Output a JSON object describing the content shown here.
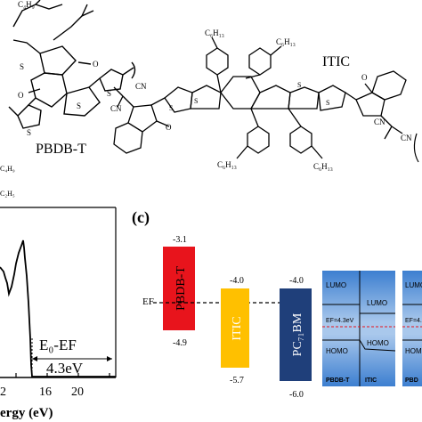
{
  "top": {
    "pbdbt_label": "PBDB-T",
    "itic_label": "ITIC",
    "c4h9": "C₄H₉",
    "c2h5": "C₂H₅",
    "c6h13": "C₆H₁₃",
    "cn": "CN",
    "o": "O",
    "s": "S"
  },
  "ups": {
    "annotation": "E₀-EF",
    "value": "4.3eV",
    "xlabel": "ergy (eV)",
    "ticks": [
      "16",
      "20"
    ],
    "partial_tick": "2"
  },
  "panel_c": {
    "label": "(c)",
    "ef_label": "EF",
    "bars": [
      {
        "name": "PBDB-T",
        "lumo": "-3.1",
        "homo": "-4.9",
        "color": "#e8141c"
      },
      {
        "name": "ITIC",
        "lumo": "-4.0",
        "homo": "-5.7",
        "color": "#ffc000"
      },
      {
        "name": "PC₇₁BM",
        "lumo": "-4.0",
        "homo": "-6.0",
        "color": "#1f3f7a"
      }
    ],
    "band1": {
      "lumo_left": "LUMO",
      "lumo_right": "LUMO",
      "ef": "EF=4.3eV",
      "homo_left": "HOMO",
      "homo_right": "HOMO",
      "bottom_left": "PBDB-T",
      "bottom_right": "ITIC"
    },
    "band2": {
      "lumo": "LUMO",
      "ef": "EF=4.",
      "homo": "HOMO",
      "bottom": "PBD"
    }
  }
}
